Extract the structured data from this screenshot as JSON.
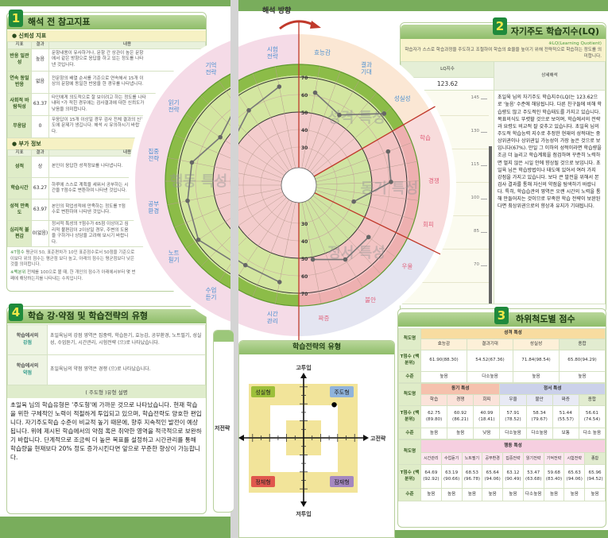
{
  "interpretation_direction": "해석 방향",
  "section1": {
    "number": "1",
    "title": "해석 전 참고지표",
    "reliability": {
      "title": "신뢰성 지표",
      "headers": [
        "지표",
        "결과",
        "내용"
      ],
      "rows": [
        {
          "name": "반응 일관성",
          "result": "높음",
          "desc": "문항내용이 유사하거나, 문항 간 상관이 높은 문항에서 같은 방향으로 응답을 하고 있는 정도를 나타낸 것입니다."
        },
        {
          "name": "연속 동일반응",
          "result": "없음",
          "desc": "전문항의 배열 순서를 기준으로 연속해서 15개 이상의 문항에 동일한 반응을 한 경우를 나타냅니다."
        },
        {
          "name": "사회적 바람직성",
          "result": "63.37",
          "desc": "타인에게 의도적으로 잘 보이려고 하는 정도를 나타내며 *가 적힌 경우에는 검사결과에 대한 신뢰도가 낮음을 의미합니다."
        },
        {
          "name": "무응답",
          "result": "0",
          "desc": "무응답이 15개 이상일 경우 검사 전체 결과의 신뢰도에 문제가 생깁니다. 해석 시 유의하시기 바랍니다."
        }
      ]
    },
    "additional": {
      "title": "부가 정보",
      "headers": [
        "지표",
        "결과",
        "내용"
      ],
      "rows": [
        {
          "name": "성적",
          "result": "상",
          "desc": "본인이 응답한 성적정보를 나타냅니다."
        },
        {
          "name": "학습시간",
          "result": "63.27",
          "desc": "하루에 스스로 계획을 세워서 공부하는 시간을 T점수로 변환하여 나타낸 것입니다."
        },
        {
          "name": "성적 만족도",
          "result": "63.97",
          "desc": "본인의 학업성적에 만족하는 정도를 T점수로 변환하여 나타낸 것입니다."
        },
        {
          "name": "심리적 불편감",
          "result": "0(없음)",
          "desc": "정서적 특성의 T점수가 65점 이상이고 심리적 불편감이 2이상일 경우, 주변의 도움을 구하거나 상담을 고려해 보시기 바랍니다."
        }
      ]
    },
    "notes": [
      {
        "label": "※T점수",
        "text": "평균이 50, 표준편차가 10인 표준점수로서 50점을 기준으로 이보다 위의 점수는 평균점 보다 높고, 아래의 점수는 평균점보다 낮은 것을 의미합니다."
      },
      {
        "label": "※백분위",
        "text": "전체를 100으로 볼 때, 한 개인의 점수가 아래에서부터 몇 번째에 해당하는지를 나타내는 수치입니다."
      }
    ]
  },
  "section4": {
    "number": "4",
    "title": "학습 강·약점 및 학습전략의 유형",
    "strength_label_1": "학습에서의",
    "strength_label_2": "강점",
    "strength_text": "초일육님의 강점 영역은 집중력, 학습듣기, 효능감, 공부환경, 노트필기, 성실성, 수업듣기, 시간관리, 시험전략 (으)로 나타났습니다.",
    "weakness_label_1": "학습에서의",
    "weakness_label_2": "약점",
    "weakness_text": "초일육님의 약점 영역은 경쟁 (으)로 나타났습니다.",
    "type_header": "( 주도형 )유형   설명",
    "type_text": "초일육 님의 학습유형은 '주도형'에 가까운 것으로 나타났습니다. 현재 학습을 위한 구체적인 노력이 적절하게 투입되고 있으며, 학습전략도 양호한 편입니다. 자기주도학습 수준이 비교적 높기 때문에, 향후 지속적인 발전이 예상됩니다. 위에 제시된 학습에서의 약점 혹은 취약한 영역을 적극적으로 보완하기 바랍니다. 단계적으로 조금씩 더 높은 목표를 설정하고 시간관리를 통해 학습량을 현재보다 20% 정도 증가시킨다면 앞으로 꾸준한 향상이 가능합니다."
  },
  "radar_chart": {
    "type": "polar",
    "scale_ticks": [
      30,
      40,
      50,
      60,
      70
    ],
    "watermarks": [
      "성격 특성",
      "동기 특성",
      "정서 특성",
      "행동 특성"
    ],
    "groups": [
      {
        "name": "성격 특성",
        "items": [
          {
            "label": "효능감",
            "value": 61.9
          },
          {
            "label": "결과기대",
            "value": 54.52
          },
          {
            "label": "성실성",
            "value": 71.84
          }
        ]
      },
      {
        "name": "동기 특성",
        "items": [
          {
            "label": "학습",
            "value": 62.75
          },
          {
            "label": "경쟁",
            "value": 60.92
          },
          {
            "label": "회피",
            "value": 40.99
          }
        ]
      },
      {
        "name": "정서 특성",
        "items": [
          {
            "label": "우울",
            "value": 57.91
          },
          {
            "label": "불안",
            "value": 58.34
          },
          {
            "label": "짜증",
            "value": 51.44
          }
        ]
      },
      {
        "name": "행동 특성",
        "items": [
          {
            "label": "시간관리",
            "value": 64.69
          },
          {
            "label": "수업듣기",
            "value": 63.19
          },
          {
            "label": "노트필기",
            "value": 68.53
          },
          {
            "label": "공부환경",
            "value": 65.64
          },
          {
            "label": "집중전략",
            "value": 63.12
          },
          {
            "label": "읽기전략",
            "value": 53.47
          },
          {
            "label": "기억전략",
            "value": 59.68
          },
          {
            "label": "시험전략",
            "value": 65.63
          }
        ]
      }
    ],
    "colors": {
      "line": "#777777",
      "point": "#666666",
      "divider": "#c0392b",
      "label_positive": "#4a8fd0",
      "label_negative": "#e0607a"
    }
  },
  "section2": {
    "number": "2",
    "title": "자기주도 학습지수(LQ)",
    "note": "※LQ(Learning Quotient)",
    "intro": "학습자가 스스로 학습과정을 주도하고 조절하여 학습의 효율을 높이기 위해 전략적으로 학습하는 정도를 의미합니다.",
    "lq_header": "LQ지수",
    "lq_value": "123.62",
    "lq_numeric": 123.62,
    "scale_ticks": [
      "145",
      "130",
      "115",
      "100",
      "85",
      "70"
    ],
    "detail_header": "상세해석",
    "detail_text": "초일육 님의 자기주도 학습지수(LQ)는 123.62으로 '높음' 수준에 해당됩니다. 다른 친구들에 비해 학습량도 많고 주도적인 학습태도를 가지고 있습니다. 목표의식도 뚜렷할 것으로 보이며, 학습에서의 전략과 요령도 비교적 잘 갖추고 있습니다. 초일육 님의 주도적 학습능력 지수로 추정한 현재의 성적대는 중상위권이나 상위권일 가능성이 가장 높은 것으로 보입니다(67%). 만일 그 이하의 성적이라면 학습량을 조금 더 늘리고 학습계획을 점검하며 꾸준히 노력하면 멀지 않은 시일 안에 향상될 것으로 보입니다. 초일육 님은 학습방법이나 태도에 있어서 여러 가지 강점을 가지고 있습니다. 보다 큰 발전을 위해서 본 검사 결과를 통해 자신의 약점을 탐색하기 바랍니다. 특히, 학습습관의 영역은 오랜 시간의 노력을 통해 만들어지는 것이므로 부족한 학습 전략이 보완된다면 최상위권으로의 향상과 유지가 기대됩니다."
  },
  "section3": {
    "number": "3",
    "title": "하위척도별 점수",
    "row_labels": {
      "scale": "척도명",
      "t": "T점수 (백분위)",
      "level": "수준"
    },
    "personality": {
      "title": "성격 특성",
      "cols": [
        "효능감",
        "결과기대",
        "성실성",
        "종합"
      ],
      "t": [
        "61.90(88.30)",
        "54.52(67.36)",
        "71.84(98.54)",
        "65.80(94.29)"
      ],
      "level": [
        "높음",
        "다소높음",
        "높음",
        "높음"
      ]
    },
    "motivation_emotion": {
      "title_motivation": "동기 특성",
      "title_emotion": "정서 특성",
      "cols": [
        "학습",
        "경쟁",
        "회피",
        "우울",
        "불안",
        "짜증",
        "종합"
      ],
      "t": [
        "62.75 (89.80)",
        "60.92 (86.21)",
        "40.99 (18.41)",
        "57.91 (78.52)",
        "58.34 (79.67)",
        "51.44 (55.57)",
        "56.61 (74.54)"
      ],
      "level": [
        "높음",
        "높음",
        "낮음",
        "다소높음",
        "다소높음",
        "보통",
        "다소 높음"
      ]
    },
    "behavior": {
      "title": "행동 특성",
      "cols": [
        "시간관리",
        "수업듣기",
        "노트필기",
        "공부환경",
        "집중전략",
        "읽기전략",
        "기억전략",
        "시험전략",
        "종합"
      ],
      "t": [
        "64.69 (92.92)",
        "63.19 (90.66)",
        "68.53 (96.78)",
        "65.64 (94.06)",
        "63.12 (90.49)",
        "53.47 (63.68)",
        "59.68 (83.40)",
        "65.63 (94.06)",
        "65.96 (94.52)"
      ],
      "level": [
        "높음",
        "높음",
        "높음",
        "높음",
        "높음",
        "다소높음",
        "높음",
        "높음",
        "높음"
      ]
    }
  },
  "strategy": {
    "title": "학습전략의 유형",
    "axis_top": "고투입",
    "axis_bottom": "저투입",
    "axis_left": "저전략",
    "axis_right": "고전략",
    "quadrants": [
      {
        "label": "성실형",
        "color": "#9cbf3a"
      },
      {
        "label": "주도형",
        "color": "#8fb3dc"
      },
      {
        "label": "정체형",
        "color": "#e0574d"
      },
      {
        "label": "잠재형",
        "color": "#a487c0"
      }
    ],
    "position_ticks": {
      "strategy": 3.6,
      "input": 3.9
    }
  }
}
